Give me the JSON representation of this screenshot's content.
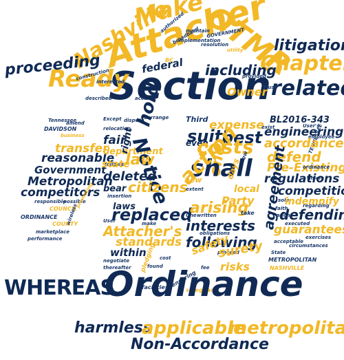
{
  "colors": {
    "gold": "#f2b826",
    "navy": "#102a55"
  },
  "words": {
    "section": "Section",
    "ordinance": "Ordinance",
    "attacher": "Attacher",
    "whereas": "WHEREAS",
    "otmr": "OTMR",
    "make": "Make",
    "nashville": "Nashville",
    "ready": "Ready",
    "chapter": "Chapter",
    "litigation": "litigation",
    "proceeding": "proceeding",
    "related": "related",
    "including": "including",
    "federal": "federal",
    "harmless": "harmless",
    "applicable": "applicable",
    "metropolitan": "metropolitan",
    "non_accordance": "Non-Accordance",
    "shall": "shall",
    "costs": "costs",
    "suit": "suit",
    "best": "best",
    "action": "action",
    "arising": "arising",
    "interests": "interests",
    "following": "following",
    "hold": "hold",
    "notice": "Notice",
    "law": "law",
    "replaced": "replaced",
    "citizens": "citizens",
    "attachers": "Attacher's",
    "deleted": "deleted",
    "standards": "standards",
    "within": "within",
    "government": "Government",
    "metropolitan_cap": "Metropolitan",
    "competitors": "competitors",
    "transfer": "transfer",
    "reasonable": "reasonable",
    "accordance": "accordance",
    "engineering": "engineering",
    "defend": "defend",
    "pre_existing": "Pre-Existing",
    "regulations": "regulations",
    "competition": "competition",
    "defending": "defending",
    "indemnify": "indemnify",
    "guarantees": "guarantees",
    "agreement": "agreement",
    "bl2016": "BL2016-343",
    "third": "Third",
    "expense": "expense",
    "one": "one",
    "owner": "Owner",
    "surety": "surety",
    "risks": "risks",
    "safety": "safety",
    "party": "Party",
    "local": "local",
    "state": "state",
    "fair": "fair",
    "right": "right",
    "bear": "bear",
    "laws": "laws",
    "days": "days",
    "new": "new",
    "even": "even",
    "department": "department",
    "davidson": "DAVIDSON",
    "tennessee": "Tennessee",
    "county": "COUNTY",
    "council": "COUNCIL",
    "metropolitan_upper": "METROPOLITAN",
    "nashville_upper": "NASHVILLE",
    "ordinance_upper": "ORDINANCE",
    "authorized": "authorized",
    "broadband": "broadband",
    "implementation": "implementation",
    "construction": "construction",
    "interested": "interested",
    "provided": "provided",
    "maintain": "maintain",
    "resolution": "resolution",
    "government_upper": "GOVERNMENT",
    "described": "described",
    "access": "access",
    "trust": "Trust",
    "except": "Except",
    "dispute": "dispute",
    "rearrange": "rearrange",
    "written": "written",
    "obligations": "obligations",
    "negotiate": "negotiate",
    "thereafter": "thereafter",
    "facilities": "facilities",
    "ensuring": "ensuring",
    "safeguard": "safeguard",
    "pledging": "pledging",
    "found": "found",
    "user": "User",
    "users": "User's",
    "sole": "sole",
    "faith": "faith",
    "agent": "agent",
    "employee": "employee",
    "ordinance_word": "ordinance",
    "timely": "timely",
    "executed": "executed",
    "exercises": "exercises",
    "acceptable": "acceptable",
    "circumstances": "circumstances",
    "regarding": "regarding",
    "state_cap": "State",
    "business": "business",
    "amend": "amend",
    "possible": "possible",
    "wireless": "wireless",
    "marketplace": "marketplace",
    "performance": "performance",
    "responsible": "responsible",
    "promoting": "promoting",
    "relocation": "relocation",
    "follows": "follows",
    "insertion": "insertion",
    "make_word": "make",
    "cost": "cost",
    "fee": "fee",
    "one_cap": "One",
    "take": "take",
    "proceed": "proceed",
    "extent": "extent",
    "now": "now",
    "tennessee_upper": "TENNESSEE",
    "bc": "BC",
    "exist": "exist",
    "utility": "utility"
  }
}
